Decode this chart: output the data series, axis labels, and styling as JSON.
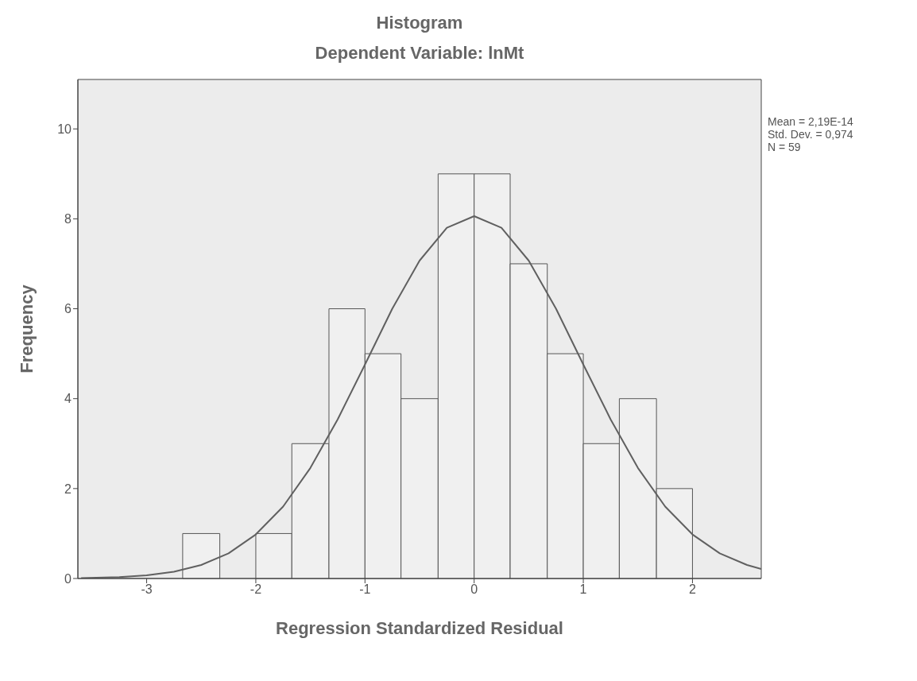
{
  "chart_data": {
    "type": "histogram",
    "title": "Histogram",
    "subtitle": "Dependent Variable: lnMt",
    "xlabel": "Regression Standardized Residual",
    "ylabel": "Frequency",
    "bins": [
      -2.67,
      -2.33,
      -2,
      -1.67,
      -1.33,
      -1,
      -0.67,
      -0.33,
      0,
      0.33,
      0.67,
      1,
      1.33,
      1.67,
      2
    ],
    "values": [
      1,
      0,
      1,
      3,
      6,
      5,
      4,
      9,
      9,
      7,
      5,
      3,
      4,
      2
    ],
    "color": "#f0f0f0",
    "series": [
      {
        "type": "line",
        "color": "#606060",
        "x": [
          -3.6,
          -3.25,
          -3,
          -2.75,
          -2.5,
          -2.25,
          -2,
          -1.75,
          -1.5,
          -1.25,
          -1,
          -0.75,
          -0.5,
          -0.25,
          0,
          0.25,
          0.5,
          0.75,
          1,
          1.25,
          1.5,
          1.75,
          2,
          2.25,
          2.5,
          2.63
        ],
        "values": [
          0.01,
          0.03,
          0.07,
          0.15,
          0.3,
          0.56,
          0.98,
          1.6,
          2.46,
          3.54,
          4.76,
          6,
          7.07,
          7.8,
          8.06,
          7.8,
          7.07,
          6,
          4.76,
          3.54,
          2.46,
          1.6,
          0.98,
          0.56,
          0.3,
          0.21
        ]
      }
    ],
    "xlim": [
      -3.63,
      2.63
    ],
    "xticks": [
      -3,
      -2,
      -1,
      0,
      1,
      2
    ],
    "ylim": [
      0,
      11.1
    ],
    "yticks": [
      0,
      2,
      4,
      6,
      8,
      10
    ],
    "marker": "none",
    "line_style": "solid",
    "annotations": [
      "Mean = 2,19E-14",
      "Std. Dev. = 0,974",
      "N = 59"
    ]
  }
}
